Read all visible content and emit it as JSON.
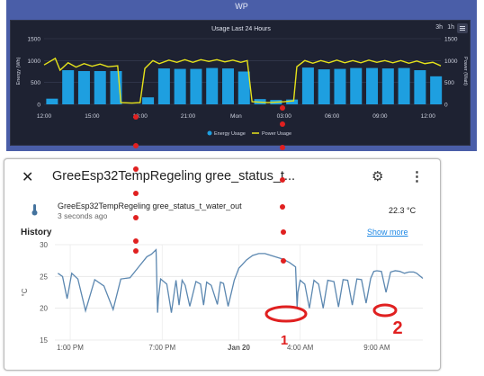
{
  "dashboard": {
    "window_title": "WP",
    "chart_title": "Usage Last 24 Hours",
    "range_3h": "3h",
    "range_1h": "1h",
    "y_left_label": "Energy (Wh)",
    "y_right_label": "Power (Watt)",
    "legend": [
      "Energy Usage",
      "Power Usage"
    ],
    "colors": {
      "energy": "#1e9fe0",
      "power": "#e6e21a",
      "background": "#1e2232",
      "frame": "#4a5ea8"
    }
  },
  "card": {
    "title": "GreeEsp32TempRegeling gree_status_t...",
    "entity_name": "GreeEsp32TempRegeling gree_status_t_water_out",
    "last_changed": "3 seconds ago",
    "value": "22.3 °C",
    "history_label": "History",
    "show_more": "Show more",
    "icon": "thermometer-icon",
    "line_color": "#5b87b0"
  },
  "annotations": {
    "mark_1": "1",
    "mark_2": "2",
    "color": "#e02020"
  },
  "chart_data": [
    {
      "type": "bar",
      "title": "Usage Last 24 Hours",
      "ylabel": "Energy (Wh)",
      "y2label": "Power (Watt)",
      "ylim": [
        0,
        1500
      ],
      "y2lim": [
        0,
        1500
      ],
      "x_ticks": [
        "12:00",
        "15:00",
        "18:00",
        "21:00",
        "Mon",
        "03:00",
        "06:00",
        "09:00",
        "12:00"
      ],
      "y_ticks": [
        0,
        500,
        1000,
        1500
      ],
      "grid": true,
      "legend_position": "bottom",
      "x_hours": [
        0.5,
        1.5,
        2.5,
        3.5,
        4.5,
        5.5,
        6.5,
        7.5,
        8.5,
        9.5,
        10.5,
        11.5,
        12.5,
        13.5,
        14.5,
        15.5,
        16.5,
        17.5,
        18.5,
        19.5,
        20.5,
        21.5,
        22.5,
        23.5,
        24.5
      ],
      "series": [
        {
          "name": "Energy Usage",
          "type": "bar",
          "values": [
            130,
            780,
            760,
            760,
            760,
            0,
            160,
            820,
            810,
            810,
            830,
            820,
            750,
            120,
            100,
            110,
            840,
            800,
            810,
            830,
            830,
            820,
            830,
            780,
            640
          ]
        },
        {
          "name": "Power Usage",
          "type": "line",
          "x": [
            0,
            0.7,
            1,
            1.5,
            2,
            2.5,
            3,
            3.5,
            4,
            4.6,
            4.8,
            5.5,
            6,
            6.3,
            6.8,
            7.2,
            7.8,
            8.3,
            8.8,
            9.3,
            9.8,
            10.3,
            10.8,
            11.3,
            11.8,
            12.3,
            12.7,
            13,
            14,
            15,
            15.6,
            15.8,
            16.3,
            16.8,
            17.3,
            17.8,
            18.3,
            18.8,
            19.3,
            19.8,
            20.3,
            20.8,
            21.3,
            21.8,
            22.3,
            22.8,
            23.3,
            23.8,
            24.3,
            24.8
          ],
          "y": [
            900,
            1050,
            780,
            950,
            850,
            930,
            870,
            920,
            860,
            880,
            40,
            30,
            40,
            820,
            1000,
            930,
            1010,
            960,
            1020,
            960,
            1020,
            980,
            1020,
            970,
            1010,
            960,
            1000,
            60,
            40,
            60,
            80,
            860,
            1000,
            940,
            1000,
            950,
            1010,
            950,
            1000,
            950,
            1010,
            960,
            1000,
            950,
            1000,
            940,
            990,
            930,
            960,
            880
          ]
        }
      ]
    },
    {
      "type": "line",
      "title": "History",
      "ylabel": "°C",
      "ylim": [
        15,
        30
      ],
      "y_ticks": [
        15,
        20,
        25,
        30
      ],
      "x_ticks": [
        "1:00 PM",
        "7:00 PM",
        "Jan 20",
        "4:00 AM",
        "9:00 AM"
      ],
      "x_ticks_hours": [
        13,
        19,
        24,
        28,
        33
      ],
      "xlim_hours": [
        12,
        36
      ],
      "grid": true,
      "series": [
        {
          "name": "gree_status_t_water_out",
          "x": [
            12.2,
            12.5,
            12.8,
            13.1,
            13.5,
            14.0,
            14.6,
            15.2,
            15.8,
            16.3,
            16.9,
            17.5,
            18.0,
            18.3,
            18.6,
            18.7,
            18.75,
            18.9,
            19.3,
            19.6,
            19.9,
            20.1,
            20.3,
            20.5,
            20.8,
            21.2,
            21.5,
            21.7,
            21.9,
            22.2,
            22.6,
            22.8,
            23.0,
            23.3,
            23.7,
            24.0,
            24.2,
            24.5,
            24.9,
            25.3,
            25.7,
            26.1,
            26.5,
            26.9,
            27.3,
            27.7,
            27.8,
            27.85,
            28.0,
            28.3,
            28.6,
            28.9,
            29.2,
            29.5,
            29.8,
            30.2,
            30.5,
            30.8,
            31.1,
            31.4,
            31.7,
            32.0,
            32.3,
            32.6,
            32.8,
            33.0,
            33.3,
            33.6,
            33.9,
            34.2,
            34.5,
            34.8,
            35.1,
            35.4,
            35.6,
            36.0
          ],
          "y": [
            25.5,
            25.0,
            21.5,
            25.5,
            24.6,
            19.6,
            24.5,
            23.5,
            19.8,
            24.6,
            24.8,
            26.6,
            28.1,
            28.5,
            29.2,
            19.3,
            21.5,
            24.6,
            23.8,
            19.3,
            24.4,
            20.5,
            24.4,
            23.6,
            20.3,
            24.2,
            23.8,
            20.5,
            24.1,
            23.6,
            20.6,
            24.1,
            23.9,
            20.3,
            24.4,
            26.3,
            26.8,
            27.6,
            28.3,
            28.6,
            28.6,
            28.3,
            28.0,
            27.7,
            27.2,
            26.5,
            20.1,
            22.5,
            24.4,
            23.8,
            20.0,
            24.4,
            23.8,
            20.0,
            24.4,
            24.2,
            20.2,
            24.5,
            24.4,
            20.5,
            24.6,
            24.5,
            20.8,
            24.7,
            25.8,
            25.9,
            25.8,
            22.5,
            25.7,
            25.9,
            25.8,
            25.5,
            25.7,
            25.7,
            25.5,
            24.7
          ]
        }
      ]
    }
  ]
}
